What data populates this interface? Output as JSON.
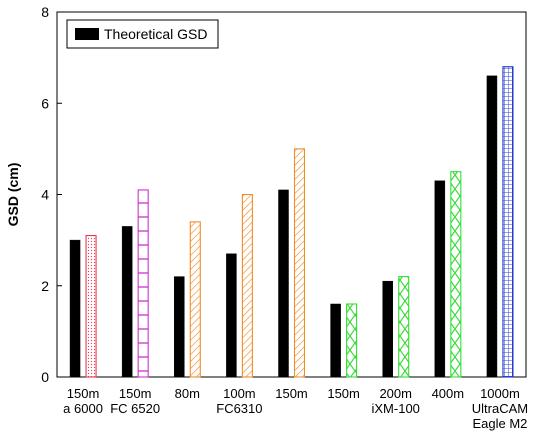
{
  "chart_data": {
    "type": "bar",
    "title": "",
    "xlabel": "",
    "ylabel": "GSD (cm)",
    "ylim": [
      0,
      8
    ],
    "yticks": [
      0,
      2,
      4,
      6,
      8
    ],
    "grid": false,
    "legend_position": "top-left",
    "categories": [
      [
        "150m",
        "a 6000"
      ],
      [
        "150m",
        "FC 6520"
      ],
      [
        "80m"
      ],
      [
        "100m",
        "FC6310"
      ],
      [
        "150m"
      ],
      [
        "150m"
      ],
      [
        "200m",
        "iXM-100"
      ],
      [
        "400m"
      ],
      [
        "1000m",
        "UltraCAM",
        "Eagle M2"
      ]
    ],
    "series": [
      {
        "name": "Theoretical GSD",
        "color": "#000000",
        "values": [
          3.0,
          3.3,
          2.2,
          2.7,
          4.1,
          1.6,
          2.1,
          4.3,
          6.6
        ]
      },
      {
        "values": [
          3.1,
          4.1,
          3.4,
          4.0,
          5.0,
          1.6,
          2.2,
          4.5,
          6.8
        ],
        "colors": [
          "#e8384f",
          "#cc33cc",
          "#f28c28",
          "#f28c28",
          "#f28c28",
          "#33dd33",
          "#33dd33",
          "#33dd33",
          "#2233cc"
        ],
        "patterns": [
          "dots",
          "hgrid",
          "diag",
          "diag",
          "diag",
          "cross",
          "cross",
          "cross",
          "grid"
        ]
      }
    ]
  }
}
